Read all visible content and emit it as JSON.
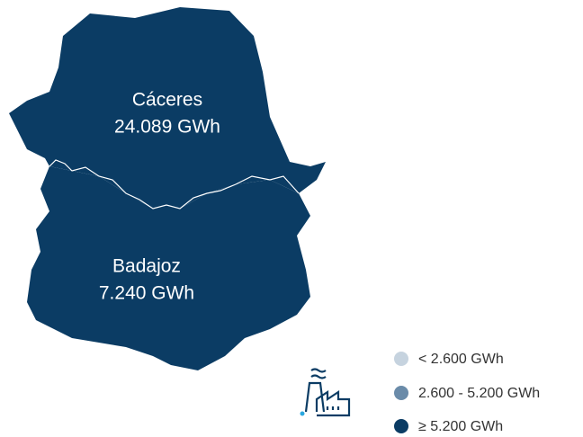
{
  "regions": [
    {
      "name": "Cáceres",
      "value": "24.089 GWh",
      "color": "#0b3c64"
    },
    {
      "name": "Badajoz",
      "value": "7.240 GWh",
      "color": "#0b3c64"
    }
  ],
  "legend": [
    {
      "label": "< 2.600 GWh",
      "color": "#c6d3df"
    },
    {
      "label": "2.600 - 5.200 GWh",
      "color": "#6a8ba9"
    },
    {
      "label": "≥ 5.200 GWh",
      "color": "#0b3c64"
    }
  ]
}
